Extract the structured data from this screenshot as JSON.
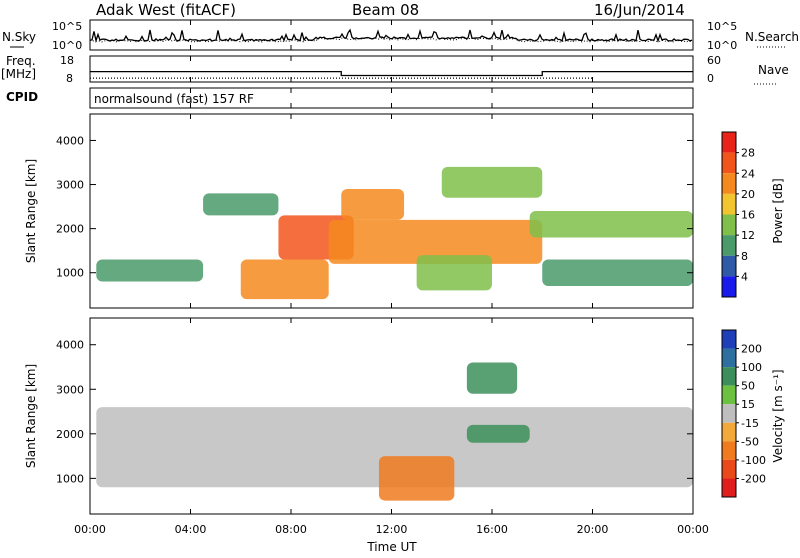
{
  "header": {
    "station": "Adak West (fitACF)",
    "beam": "Beam 08",
    "date": "16/Jun/2014"
  },
  "left_labels": {
    "nsky": "N.Sky",
    "nsky_ticks": [
      "10^5",
      "10^0"
    ],
    "freq": "Freq.",
    "freq_unit": "[MHz]",
    "freq_ticks": [
      "18",
      "8"
    ],
    "cpid": "CPID"
  },
  "right_labels": {
    "nsearch": "N.Search",
    "nsearch_ticks": [
      "10^5",
      "10^0"
    ],
    "nave": "Nave",
    "nave_ticks": [
      "60",
      "0"
    ]
  },
  "cpid_text": "normalsound (fast) 157 RF",
  "panels": {
    "power": {
      "ylabel": "Slant Range [km]"
    },
    "velocity": {
      "ylabel": "Slant Range [km]"
    }
  },
  "y_ticks": [
    "4000",
    "3000",
    "2000",
    "1000"
  ],
  "x_ticks": [
    "00:00",
    "04:00",
    "08:00",
    "12:00",
    "16:00",
    "20:00",
    "00:00"
  ],
  "xlabel": "Time UT",
  "power_scale": {
    "title": "Power [dB]",
    "labels": [
      "28",
      "24",
      "20",
      "16",
      "12",
      "8",
      "4"
    ],
    "colors": [
      "#e8231a",
      "#f2551c",
      "#f5891f",
      "#f2c430",
      "#7fbf4a",
      "#4a9a6a",
      "#2f5aa8",
      "#1a1aeb"
    ]
  },
  "velocity_scale": {
    "title": "Velocity [m s⁻¹]",
    "labels": [
      "200",
      "100",
      "50",
      "15",
      "-15",
      "-50",
      "-100",
      "-200"
    ],
    "colors": [
      "#1e3fb8",
      "#2d6f9e",
      "#3c8f5a",
      "#6cc240",
      "#bebebe",
      "#f2a83a",
      "#f07a1e",
      "#ea4a1a",
      "#e01e1e"
    ]
  },
  "chart_data": [
    {
      "type": "line",
      "title": "N.Sky / N.Search",
      "y_scale": "log",
      "ylim": [
        "10^0",
        "10^5"
      ],
      "xlim": [
        "00:00",
        "24:00"
      ],
      "description_series": [
        {
          "name": "N.Sky",
          "style": "solid spiky line near low counts"
        },
        {
          "name": "N.Search",
          "style": "dotted"
        }
      ]
    },
    {
      "type": "line",
      "xlim": [
        "00:00",
        "24:00"
      ],
      "series": [
        {
          "name": "Freq. [MHz]",
          "x": [
            "00:00",
            "10:00",
            "10:00",
            "18:00",
            "18:00",
            "24:00"
          ],
          "values": [
            12,
            12,
            10.5,
            10.5,
            12,
            12
          ],
          "ylim": [
            8,
            18
          ]
        },
        {
          "name": "Nave",
          "x": [
            "00:00",
            "20:00"
          ],
          "values": [
            9,
            9
          ],
          "ylim": [
            0,
            60
          ]
        }
      ]
    },
    {
      "type": "heatmap",
      "name": "Power",
      "xlabel": "Time UT",
      "ylabel": "Slant Range [km]",
      "xlim": [
        "00:00",
        "24:00"
      ],
      "ylim": [
        200,
        4600
      ],
      "colorbar": {
        "label": "Power [dB]",
        "ticks": [
          4,
          8,
          12,
          16,
          20,
          24,
          28
        ]
      },
      "regions": [
        {
          "time": [
            "00:15",
            "04:30"
          ],
          "range_km": [
            800,
            1300
          ],
          "power_db": 10
        },
        {
          "time": [
            "04:30",
            "07:30"
          ],
          "range_km": [
            2300,
            2800
          ],
          "power_db": 8
        },
        {
          "time": [
            "06:00",
            "09:30"
          ],
          "range_km": [
            400,
            1300
          ],
          "power_db": 22
        },
        {
          "time": [
            "07:30",
            "10:30"
          ],
          "range_km": [
            1300,
            2300
          ],
          "power_db": 24
        },
        {
          "time": [
            "09:30",
            "18:00"
          ],
          "range_km": [
            1200,
            2200
          ],
          "power_db": 22
        },
        {
          "time": [
            "13:00",
            "16:00"
          ],
          "range_km": [
            600,
            1400
          ],
          "power_db": 14
        },
        {
          "time": [
            "10:00",
            "12:30"
          ],
          "range_km": [
            2200,
            2900
          ],
          "power_db": 20
        },
        {
          "time": [
            "14:00",
            "18:00"
          ],
          "range_km": [
            2700,
            3400
          ],
          "power_db": 12
        },
        {
          "time": [
            "18:00",
            "24:00"
          ],
          "range_km": [
            700,
            1300
          ],
          "power_db": 8
        },
        {
          "time": [
            "17:30",
            "24:00"
          ],
          "range_km": [
            1800,
            2400
          ],
          "power_db": 12
        }
      ]
    },
    {
      "type": "heatmap",
      "name": "Velocity",
      "xlabel": "Time UT",
      "ylabel": "Slant Range [km]",
      "xlim": [
        "00:00",
        "24:00"
      ],
      "ylim": [
        200,
        4600
      ],
      "colorbar": {
        "label": "Velocity [m s⁻¹]",
        "ticks": [
          -200,
          -100,
          -50,
          -15,
          15,
          50,
          100,
          200
        ]
      },
      "regions": [
        {
          "time": [
            "00:15",
            "24:00"
          ],
          "range_km": [
            800,
            2600
          ],
          "velocity_ms": 0
        },
        {
          "time": [
            "11:30",
            "14:30"
          ],
          "range_km": [
            500,
            1500
          ],
          "velocity_ms": -60
        },
        {
          "time": [
            "15:00",
            "17:30"
          ],
          "range_km": [
            1800,
            2200
          ],
          "velocity_ms": 60
        },
        {
          "time": [
            "15:00",
            "17:00"
          ],
          "range_km": [
            2900,
            3600
          ],
          "velocity_ms": 60
        }
      ]
    }
  ]
}
